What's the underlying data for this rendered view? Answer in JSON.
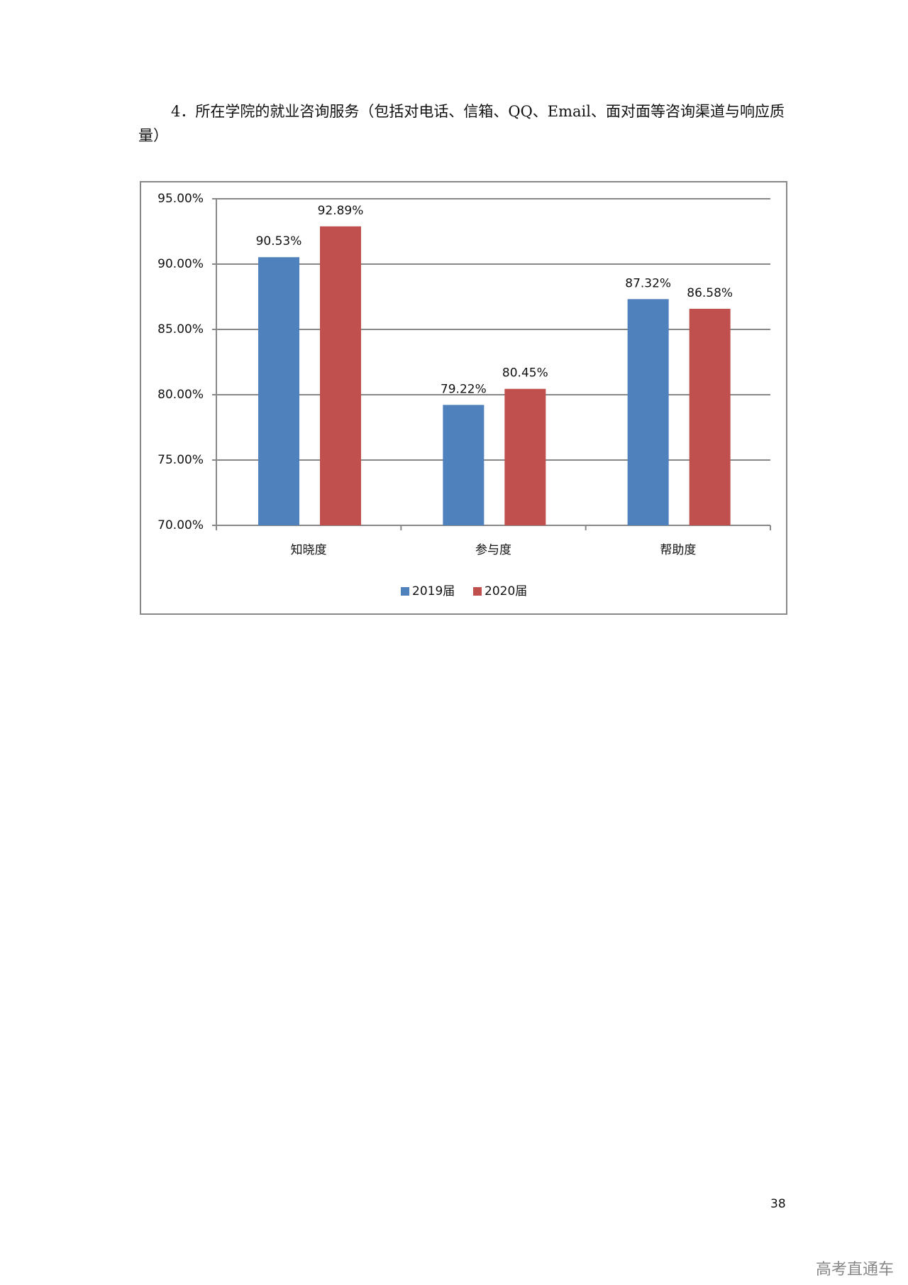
{
  "heading": "4．所在学院的就业咨询服务（包括对电话、信箱、QQ、Email、面对面等咨询渠道与响应质量）",
  "chart_data": {
    "type": "bar",
    "categories": [
      "知晓度",
      "参与度",
      "帮助度"
    ],
    "series": [
      {
        "name": "2019届",
        "color": "#4f81bd",
        "values": [
          90.53,
          79.22,
          87.32
        ],
        "value_labels": [
          "90.53%",
          "79.22%",
          "87.32%"
        ]
      },
      {
        "name": "2020届",
        "color": "#c0504d",
        "values": [
          92.89,
          80.45,
          86.58
        ],
        "value_labels": [
          "92.89%",
          "80.45%",
          "86.58%"
        ]
      }
    ],
    "ylim": [
      70,
      95
    ],
    "yticks": [
      {
        "value": 70,
        "label": "70.00%"
      },
      {
        "value": 75,
        "label": "75.00%"
      },
      {
        "value": 80,
        "label": "80.00%"
      },
      {
        "value": 85,
        "label": "85.00%"
      },
      {
        "value": 90,
        "label": "90.00%"
      },
      {
        "value": 95,
        "label": "95.00%"
      }
    ],
    "grid": true,
    "legend": "bottom"
  },
  "page_number": "38",
  "watermark": "高考直通车"
}
